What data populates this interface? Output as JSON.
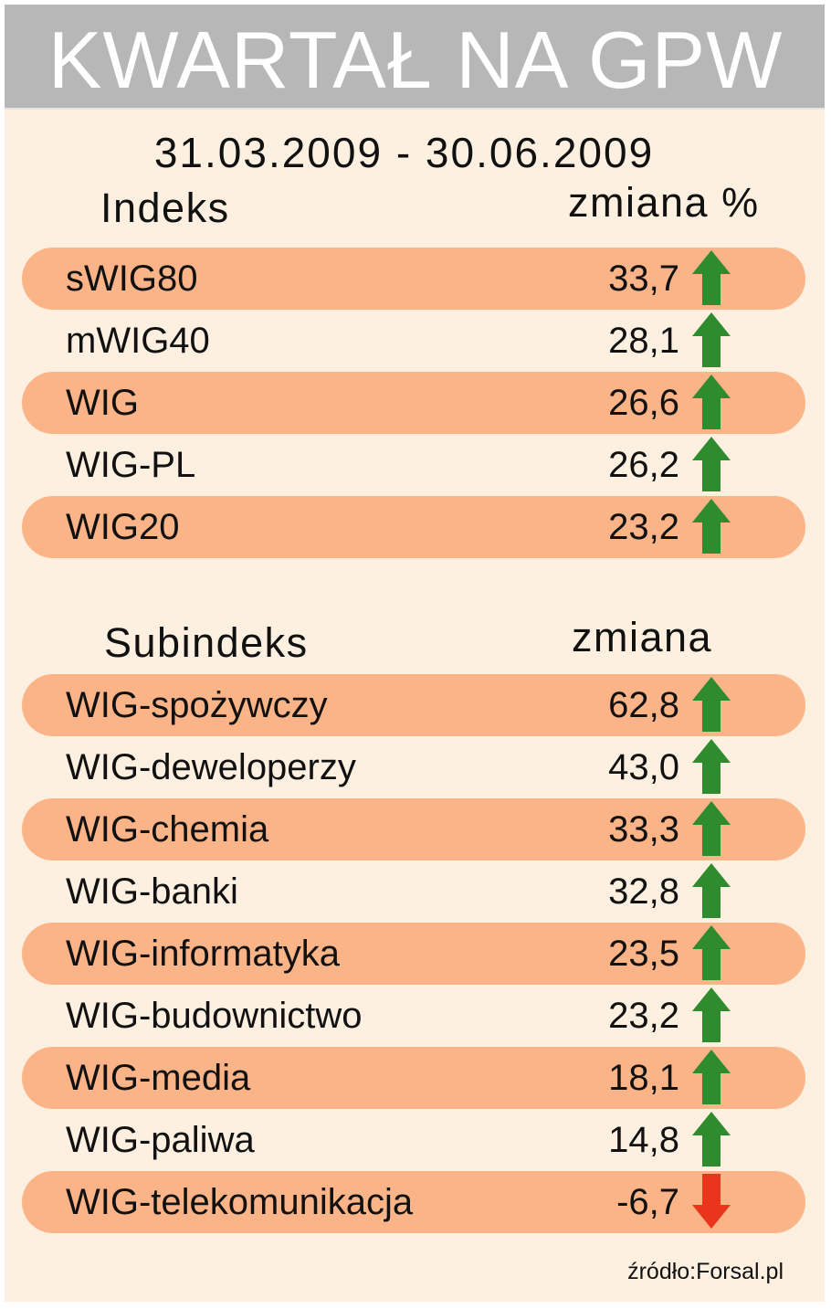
{
  "title": "KWARTAŁ NA GPW",
  "date_range": "31.03.2009 - 30.06.2009",
  "indices_section": {
    "label": "Indeks",
    "change_label": "zmiana %"
  },
  "subindices_section": {
    "label": "Subindeks",
    "change_label": "zmiana"
  },
  "source": "źródło:Forsal.pl",
  "colors": {
    "band": "#fbb487",
    "up": "#2e8b2e",
    "down": "#e8351b",
    "header": "#b7b7b7",
    "background": "#fdf0e0"
  },
  "chart_data": {
    "type": "table",
    "columns": [
      "Indeks",
      "zmiana %"
    ],
    "indices": [
      {
        "name": "sWIG80",
        "value": 33.7,
        "display": "33,7",
        "direction": "up"
      },
      {
        "name": "mWIG40",
        "value": 28.1,
        "display": "28,1",
        "direction": "up"
      },
      {
        "name": "WIG",
        "value": 26.6,
        "display": "26,6",
        "direction": "up"
      },
      {
        "name": "WIG-PL",
        "value": 26.2,
        "display": "26,2",
        "direction": "up"
      },
      {
        "name": "WIG20",
        "value": 23.2,
        "display": "23,2",
        "direction": "up"
      }
    ],
    "subindices": [
      {
        "name": "WIG-spożywczy",
        "value": 62.8,
        "display": "62,8",
        "direction": "up"
      },
      {
        "name": "WIG-deweloperzy",
        "value": 43.0,
        "display": "43,0",
        "direction": "up"
      },
      {
        "name": "WIG-chemia",
        "value": 33.3,
        "display": "33,3",
        "direction": "up"
      },
      {
        "name": "WIG-banki",
        "value": 32.8,
        "display": "32,8",
        "direction": "up"
      },
      {
        "name": "WIG-informatyka",
        "value": 23.5,
        "display": "23,5",
        "direction": "up"
      },
      {
        "name": "WIG-budownictwo",
        "value": 23.2,
        "display": "23,2",
        "direction": "up"
      },
      {
        "name": "WIG-media",
        "value": 18.1,
        "display": "18,1",
        "direction": "up"
      },
      {
        "name": "WIG-paliwa",
        "value": 14.8,
        "display": "14,8",
        "direction": "up"
      },
      {
        "name": "WIG-telekomunikacja",
        "value": -6.7,
        "display": "-6,7",
        "direction": "down"
      }
    ]
  }
}
